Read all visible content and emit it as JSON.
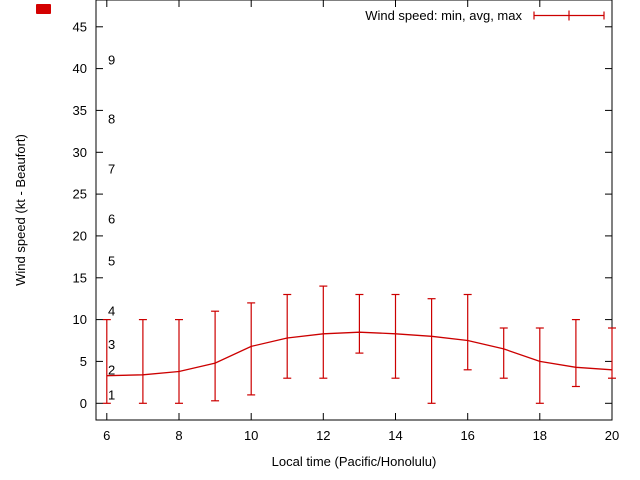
{
  "page": {
    "background": "#ffffff"
  },
  "decorations": {
    "corner_marker_color": "#d40000"
  },
  "chart_data": {
    "type": "line",
    "title": "",
    "legend": {
      "label": "Wind speed: min, avg, max",
      "position": "top-right"
    },
    "xlabel": "Local time (Pacific/Honolulu)",
    "ylabel": "Wind speed (kt - Beaufort)",
    "x": [
      6,
      7,
      8,
      9,
      10,
      11,
      12,
      13,
      14,
      15,
      16,
      17,
      18,
      19,
      20
    ],
    "series": [
      {
        "name": "avg",
        "values": [
          3.3,
          3.4,
          3.8,
          4.8,
          6.8,
          7.8,
          8.3,
          8.5,
          8.3,
          8.0,
          7.5,
          6.5,
          5.0,
          4.3,
          4.0
        ]
      },
      {
        "name": "min",
        "values": [
          0,
          0,
          0,
          0.3,
          1,
          3,
          3,
          6,
          3,
          0,
          4,
          3,
          0,
          2,
          3
        ]
      },
      {
        "name": "max",
        "values": [
          10,
          10,
          10,
          11,
          12,
          13,
          14,
          13,
          13,
          12.5,
          13,
          9,
          9,
          10,
          9
        ]
      }
    ],
    "xticks": [
      6,
      8,
      10,
      12,
      14,
      16,
      18,
      20
    ],
    "yticks": [
      0,
      5,
      10,
      15,
      20,
      25,
      30,
      35,
      40,
      45
    ],
    "beaufort_scale": {
      "labels": [
        "1",
        "2",
        "3",
        "4",
        "5",
        "6",
        "7",
        "8",
        "9"
      ],
      "kt_positions": [
        1,
        4,
        7,
        11,
        17,
        22,
        28,
        34,
        41
      ]
    },
    "xlim": [
      5.7,
      20
    ],
    "ylim": [
      -2,
      48.2
    ],
    "grid": false,
    "legend_frame": false,
    "line_color": "#cc0000",
    "axis_color": "#000000"
  }
}
